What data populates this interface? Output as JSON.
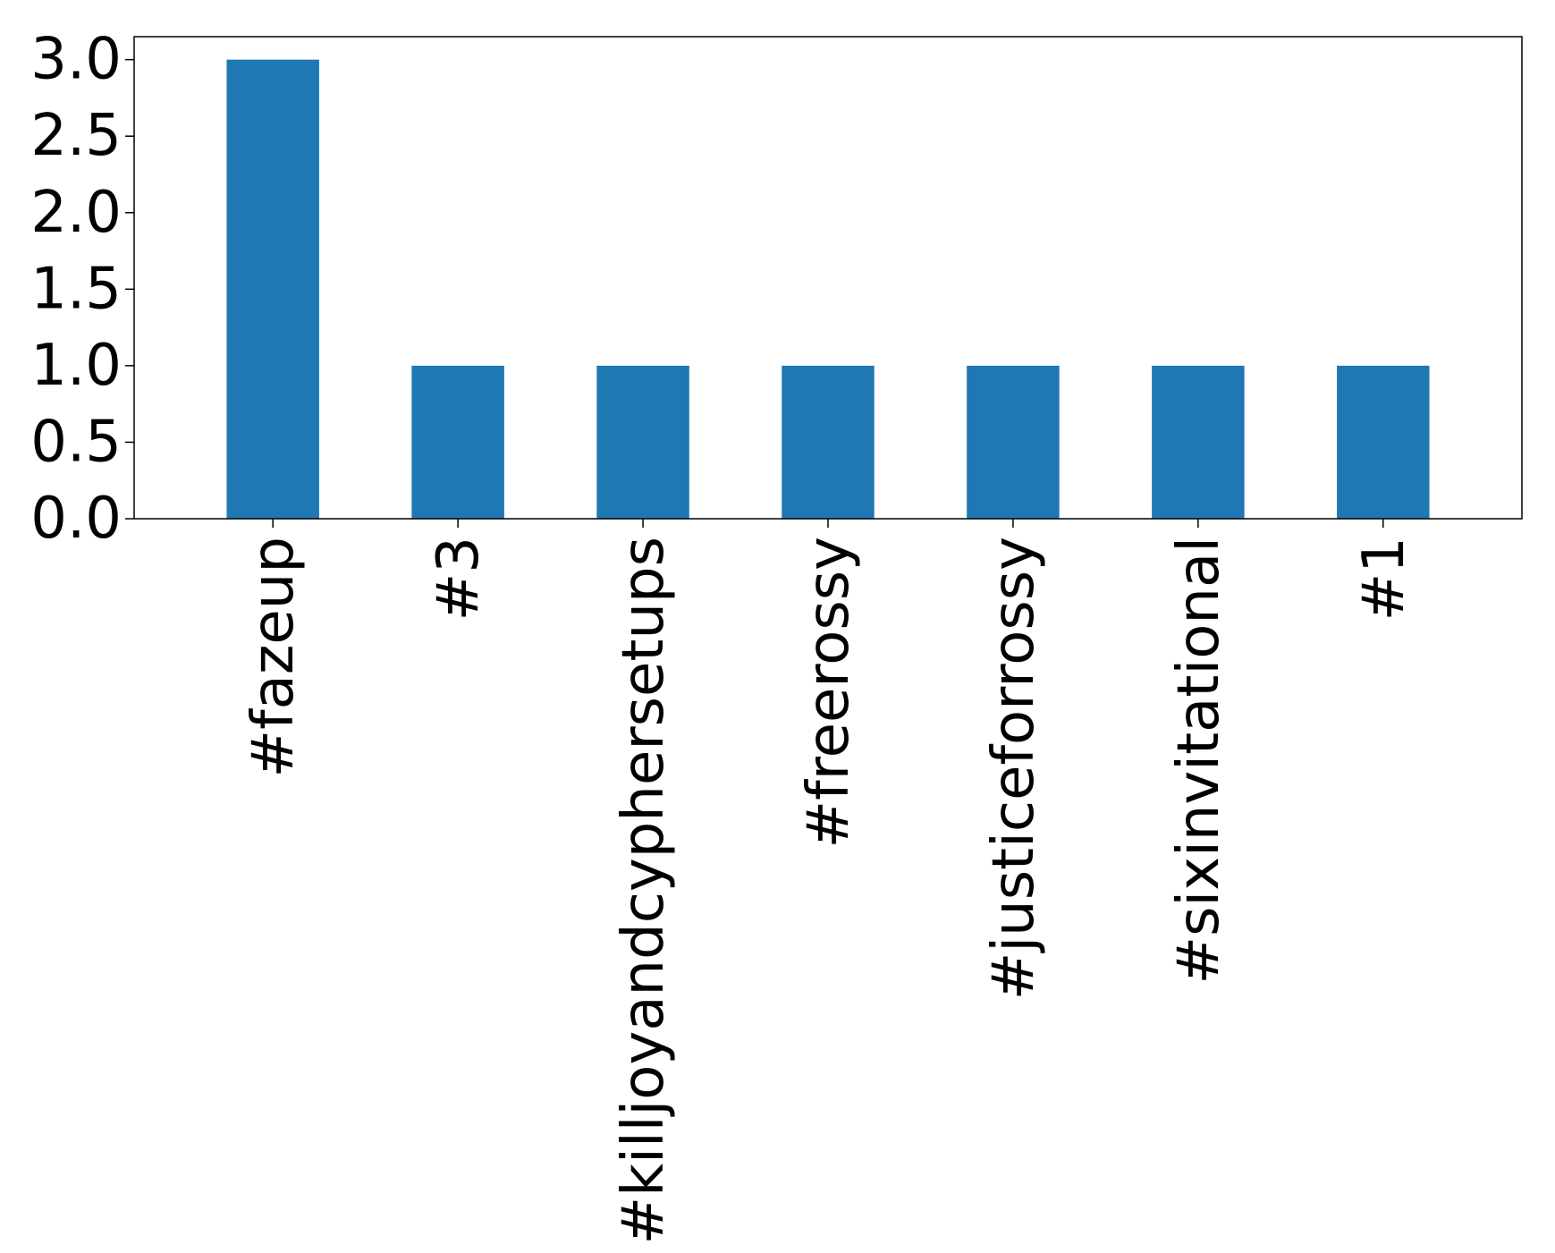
{
  "chart_data": {
    "type": "bar",
    "categories": [
      "#fazeup",
      "#3",
      "#killjoyandcyphersetups",
      "#freerossy",
      "#justiceforrossy",
      "#sixinvitational",
      "#1"
    ],
    "values": [
      3,
      1,
      1,
      1,
      1,
      1,
      1
    ],
    "ylim": [
      0,
      3.15
    ],
    "yticks": [
      0.0,
      0.5,
      1.0,
      1.5,
      2.0,
      2.5,
      3.0
    ],
    "ytick_labels": [
      "0.0",
      "0.5",
      "1.0",
      "1.5",
      "2.0",
      "2.5",
      "3.0"
    ],
    "title": "",
    "xlabel": "",
    "ylabel": "",
    "grid": false,
    "bar_color": "#1f77b4"
  }
}
